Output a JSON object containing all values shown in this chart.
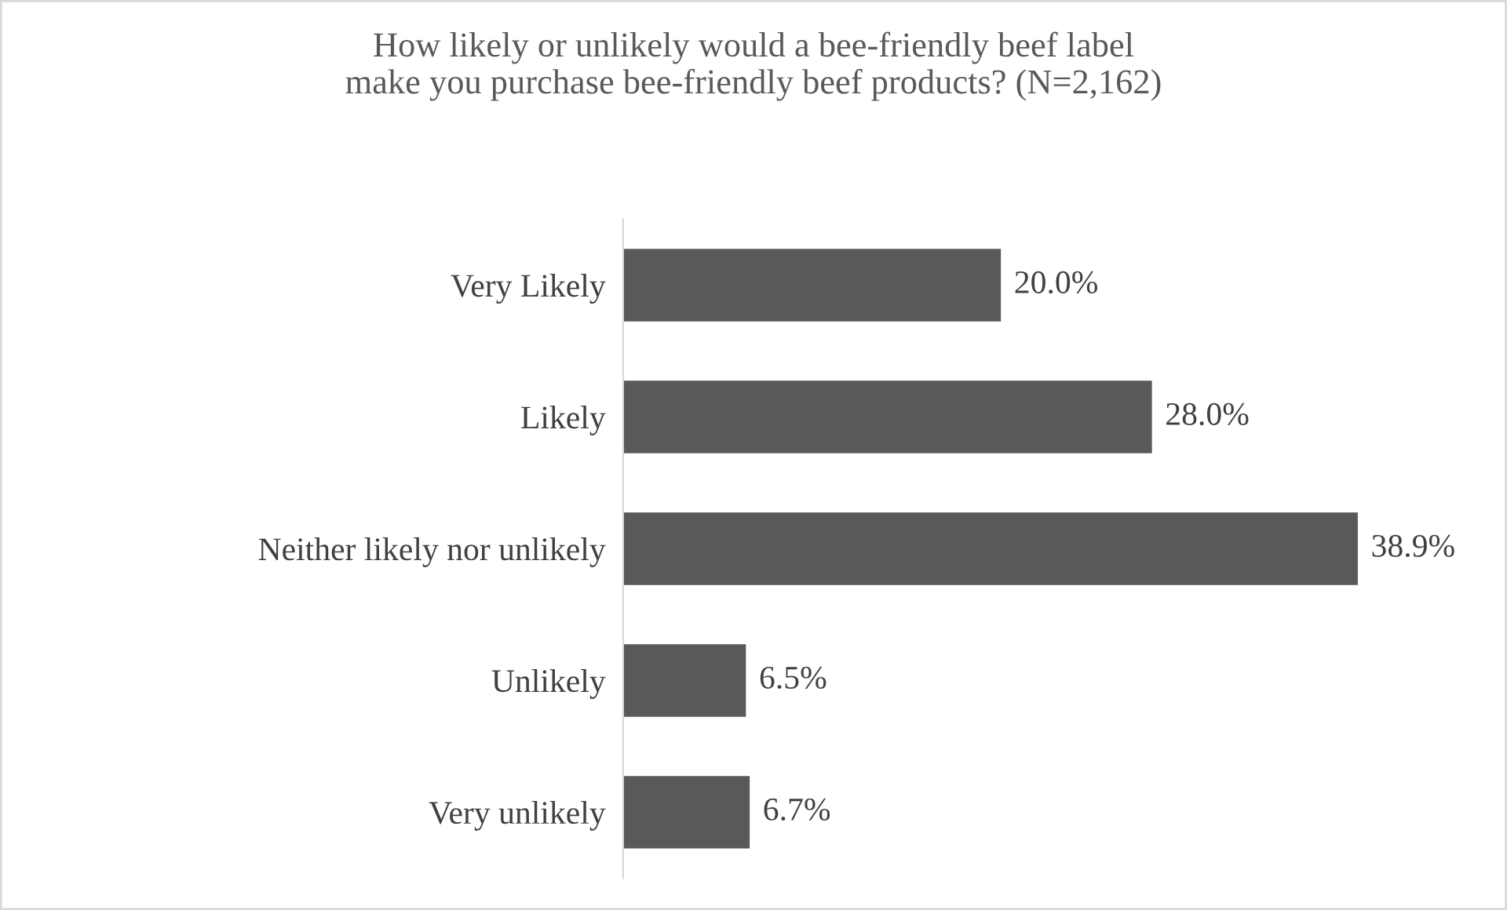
{
  "chart_data": {
    "type": "bar",
    "orientation": "horizontal",
    "title": "How likely or unlikely would a bee-friendly beef label\nmake you purchase bee-friendly beef products? (N=2,162)",
    "categories": [
      "Very Likely",
      "Likely",
      "Neither likely nor unlikely",
      "Unlikely",
      "Very unlikely"
    ],
    "values": [
      20.0,
      28.0,
      38.9,
      6.5,
      6.7
    ],
    "value_labels": [
      "20.0%",
      "28.0%",
      "38.9%",
      "6.5%",
      "6.7%"
    ],
    "color": "#595959",
    "grid": false,
    "tick_labels": "y"
  }
}
